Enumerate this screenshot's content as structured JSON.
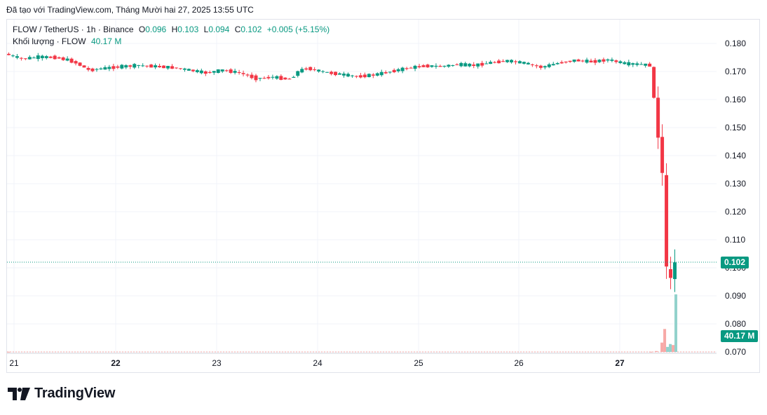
{
  "header": {
    "credit": "Đã tạo với TradingView.com, Tháng Mười hai 27, 2025 13:55 UTC"
  },
  "legend": {
    "symbol": "FLOW / TetherUS · 1h · Binance",
    "open_label": "O",
    "open": "0.096",
    "high_label": "H",
    "high": "0.103",
    "low_label": "L",
    "low": "0.094",
    "close_label": "C",
    "close": "0.102",
    "change": "+0.005 (+5.15%)",
    "volume_label": "Khối lượng · FLOW",
    "volume": "40.17 M"
  },
  "badges": {
    "price": "0.102",
    "volume": "40.17 M"
  },
  "brand": {
    "name": "TradingView"
  },
  "colors": {
    "up": "#089981",
    "down": "#f23645",
    "up_volume": "#92d2cc",
    "down_volume": "#f7a9a7",
    "last_price_line": "#089981"
  },
  "chart_data": {
    "type": "candlestick",
    "symbol": "FLOW / TetherUS",
    "interval": "1h",
    "exchange": "Binance",
    "ylim": [
      0.07,
      0.18
    ],
    "y_ticks": [
      "0.180",
      "0.170",
      "0.160",
      "0.150",
      "0.140",
      "0.130",
      "0.120",
      "0.110",
      "0.100",
      "0.090",
      "0.080",
      "0.070"
    ],
    "x_ticks": [
      "21",
      "22",
      "23",
      "24",
      "25",
      "26",
      "27"
    ],
    "last_price": 0.102,
    "grid": true,
    "price_path": [
      [
        0,
        0.1763
      ],
      [
        12,
        0.1745
      ],
      [
        24,
        0.1752
      ],
      [
        36,
        0.175
      ],
      [
        46,
        0.174
      ],
      [
        52,
        0.1728
      ],
      [
        60,
        0.1705
      ],
      [
        72,
        0.1712
      ],
      [
        84,
        0.1718
      ],
      [
        96,
        0.1722
      ],
      [
        108,
        0.1718
      ],
      [
        120,
        0.1714
      ],
      [
        132,
        0.1705
      ],
      [
        144,
        0.1695
      ],
      [
        156,
        0.1705
      ],
      [
        168,
        0.1695
      ],
      [
        180,
        0.1675
      ],
      [
        192,
        0.168
      ],
      [
        204,
        0.1672
      ],
      [
        210,
        0.17
      ],
      [
        216,
        0.1712
      ],
      [
        228,
        0.1698
      ],
      [
        240,
        0.169
      ],
      [
        252,
        0.1682
      ],
      [
        264,
        0.1688
      ],
      [
        276,
        0.17
      ],
      [
        288,
        0.1712
      ],
      [
        300,
        0.172
      ],
      [
        312,
        0.1718
      ],
      [
        324,
        0.1725
      ],
      [
        336,
        0.1722
      ],
      [
        348,
        0.1732
      ],
      [
        360,
        0.1738
      ],
      [
        372,
        0.173
      ],
      [
        384,
        0.1715
      ],
      [
        396,
        0.173
      ],
      [
        408,
        0.174
      ],
      [
        420,
        0.1735
      ],
      [
        432,
        0.1742
      ],
      [
        444,
        0.1728
      ],
      [
        456,
        0.1725
      ],
      [
        462,
        0.1722
      ],
      [
        466,
        0.156
      ],
      [
        468,
        0.147
      ],
      [
        470,
        0.144
      ],
      [
        472,
        0.123
      ],
      [
        474,
        0.1
      ],
      [
        476,
        0.096
      ],
      [
        478,
        0.0958
      ],
      [
        480,
        0.102
      ]
    ],
    "volume": [
      [
        0,
        0.1
      ],
      [
        460,
        0.12
      ],
      [
        464,
        0.6
      ],
      [
        468,
        6.5
      ],
      [
        470,
        16
      ],
      [
        472,
        3.5
      ],
      [
        474,
        5.5
      ],
      [
        476,
        4.8
      ],
      [
        478,
        40.17
      ]
    ],
    "volume_max": 45
  }
}
